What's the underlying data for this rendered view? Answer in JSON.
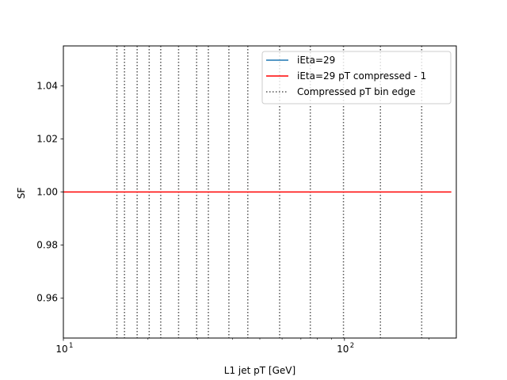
{
  "chart_data": {
    "type": "line",
    "title": "",
    "xlabel": "L1 jet pT [GeV]",
    "ylabel": "SF",
    "xscale": "log",
    "xlim": [
      10,
      250
    ],
    "ylim": [
      0.945,
      1.055
    ],
    "x_ticks": [
      {
        "value": 10,
        "base": "10",
        "exp": "1"
      },
      {
        "value": 100,
        "base": "10",
        "exp": "2"
      }
    ],
    "y_ticks": [
      {
        "value": 0.96,
        "label": "0.96"
      },
      {
        "value": 0.98,
        "label": "0.98"
      },
      {
        "value": 1.0,
        "label": "1.00"
      },
      {
        "value": 1.02,
        "label": "1.02"
      },
      {
        "value": 1.04,
        "label": "1.04"
      }
    ],
    "grid": false,
    "legend_position": "top-right",
    "series": [
      {
        "name": "iEta=29",
        "color": "#1f77b4",
        "style": "solid",
        "x": [],
        "y": []
      },
      {
        "name": "iEta=29 pT compressed - 1",
        "color": "#ff0000",
        "style": "solid",
        "x": [
          10,
          240
        ],
        "y": [
          1.0,
          1.0
        ]
      },
      {
        "name": "Compressed pT bin edge",
        "color": "#555555",
        "style": "dotted",
        "x": [],
        "y": []
      }
    ],
    "bin_edges": [
      15.5,
      16.5,
      18.3,
      20.2,
      22.2,
      25.7,
      29.8,
      32.8,
      38.8,
      45.3,
      58.8,
      75.6,
      99.2,
      134.3,
      188.3
    ]
  }
}
